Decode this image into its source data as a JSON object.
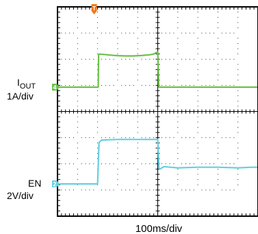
{
  "chart_data": {
    "type": "line",
    "title": "",
    "xlabel": "100ms/div",
    "x_unit": "ms",
    "xlim": [
      0,
      1000
    ],
    "grid": true,
    "colors": {
      "background": "#ffffff",
      "frame": "#000000",
      "grid": "#000000",
      "iout": "#6cc04a",
      "en": "#67cfe0",
      "trigger_marker": "#f07818"
    },
    "trigger": {
      "label": "T",
      "x": 183
    },
    "series": [
      {
        "name": "IOUT",
        "scale_label": "1A/div",
        "ground_marker": "4",
        "x": [
          0,
          190,
          203,
          205,
          210,
          230,
          260,
          300,
          340,
          380,
          420,
          460,
          480,
          490,
          500,
          505,
          600,
          700,
          800,
          900,
          1000
        ],
        "y": [
          0.0,
          0.0,
          0.0,
          2.65,
          2.68,
          2.65,
          2.6,
          2.55,
          2.53,
          2.53,
          2.56,
          2.62,
          2.68,
          2.78,
          2.85,
          0.0,
          0.0,
          0.0,
          0.0,
          0.0,
          0.0
        ]
      },
      {
        "name": "EN",
        "scale_label": "2V/div",
        "ground_marker": "2",
        "x": [
          0,
          200,
          207,
          220,
          300,
          400,
          500,
          506,
          512,
          530,
          600,
          700,
          800,
          900,
          970,
          1000
        ],
        "y": [
          0.0,
          0.0,
          3.35,
          3.55,
          3.6,
          3.6,
          3.6,
          1.3,
          1.2,
          1.4,
          1.3,
          1.35,
          1.35,
          1.3,
          1.35,
          1.35
        ]
      }
    ]
  },
  "labels": {
    "iout_main": "I",
    "iout_sub": "OUT",
    "iout_scale": "1A/div",
    "en_name": "EN",
    "en_scale": "2V/div",
    "time_scale": "100ms/div",
    "trigger_marker": "T",
    "iout_marker": "4",
    "en_marker": "2"
  }
}
